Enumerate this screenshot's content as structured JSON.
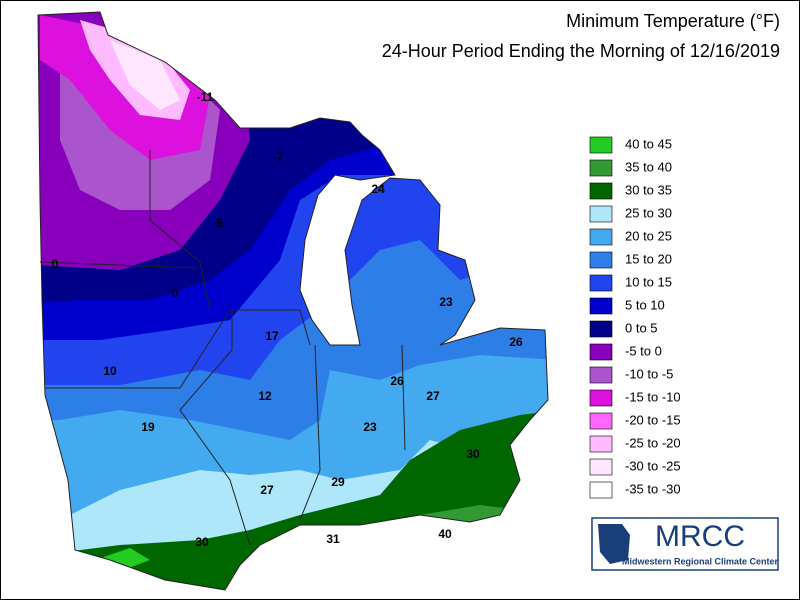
{
  "header": {
    "title": "Minimum Temperature (°F)",
    "subtitle": "24-Hour Period Ending the Morning of 12/16/2019"
  },
  "legend": [
    {
      "label": "40 to 45",
      "color": "#22cc22"
    },
    {
      "label": "35 to 40",
      "color": "#339933"
    },
    {
      "label": "30 to 35",
      "color": "#006600"
    },
    {
      "label": "25 to 30",
      "color": "#aee6fa"
    },
    {
      "label": "20 to 25",
      "color": "#44aaf0"
    },
    {
      "label": "15 to 20",
      "color": "#2e7ee8"
    },
    {
      "label": "10 to 15",
      "color": "#2244ee"
    },
    {
      "label": "5 to 10",
      "color": "#0000cc"
    },
    {
      "label": "0 to 5",
      "color": "#000088"
    },
    {
      "label": "-5 to 0",
      "color": "#8800bb"
    },
    {
      "label": "-10 to -5",
      "color": "#aa55cc"
    },
    {
      "label": "-15 to -10",
      "color": "#dd11dd"
    },
    {
      "label": "-20 to -15",
      "color": "#ff66ff"
    },
    {
      "label": "-25 to -20",
      "color": "#ffbbff"
    },
    {
      "label": "-30 to -25",
      "color": "#ffe6ff"
    },
    {
      "label": "-35 to -30",
      "color": "#ffffff"
    }
  ],
  "map_labels": [
    -11,
    -7,
    24,
    -5,
    0,
    0,
    23,
    26,
    17,
    10,
    26,
    27,
    12,
    19,
    23,
    30,
    29,
    27,
    31,
    40,
    30
  ],
  "logo": {
    "name": "MRCC",
    "full_name": "Midwestern Regional Climate Center"
  }
}
